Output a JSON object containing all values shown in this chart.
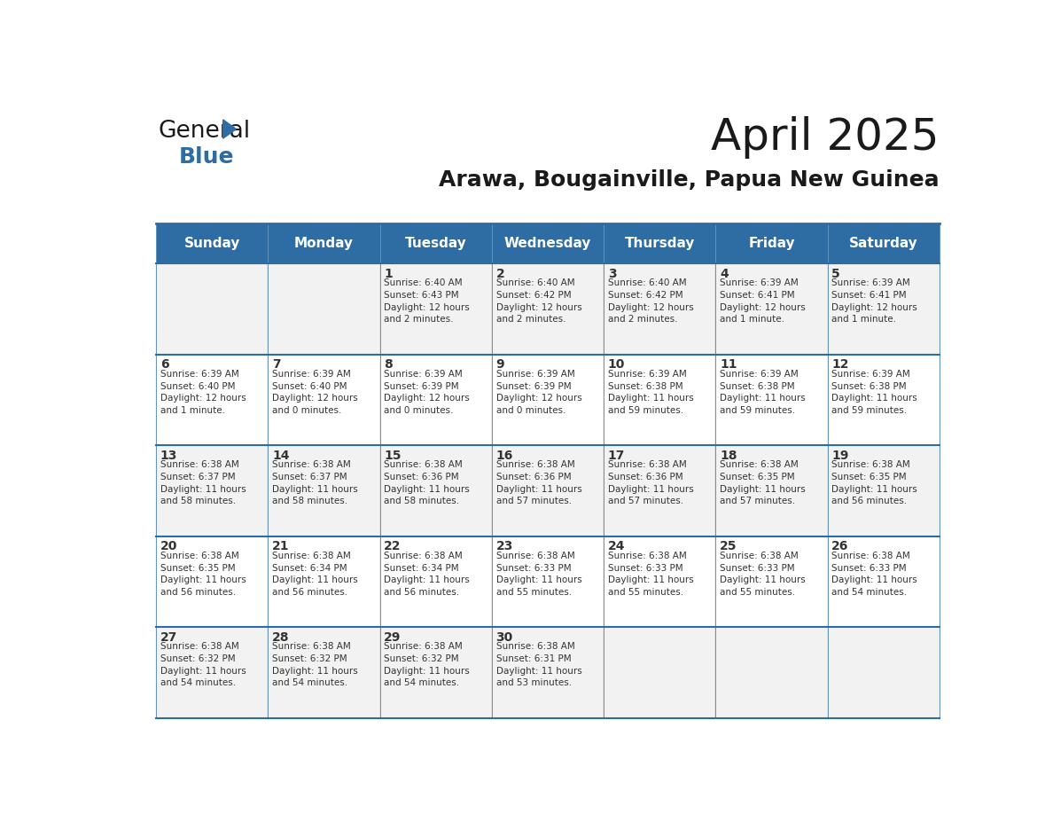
{
  "title": "April 2025",
  "subtitle": "Arawa, Bougainville, Papua New Guinea",
  "days_of_week": [
    "Sunday",
    "Monday",
    "Tuesday",
    "Wednesday",
    "Thursday",
    "Friday",
    "Saturday"
  ],
  "header_bg": "#2E6DA4",
  "header_text": "#FFFFFF",
  "cell_bg_odd": "#F2F2F2",
  "cell_bg_even": "#FFFFFF",
  "grid_line_color": "#2E6DA4",
  "text_color": "#333333",
  "calendar": [
    [
      {
        "day": "",
        "text": ""
      },
      {
        "day": "",
        "text": ""
      },
      {
        "day": "1",
        "text": "Sunrise: 6:40 AM\nSunset: 6:43 PM\nDaylight: 12 hours\nand 2 minutes."
      },
      {
        "day": "2",
        "text": "Sunrise: 6:40 AM\nSunset: 6:42 PM\nDaylight: 12 hours\nand 2 minutes."
      },
      {
        "day": "3",
        "text": "Sunrise: 6:40 AM\nSunset: 6:42 PM\nDaylight: 12 hours\nand 2 minutes."
      },
      {
        "day": "4",
        "text": "Sunrise: 6:39 AM\nSunset: 6:41 PM\nDaylight: 12 hours\nand 1 minute."
      },
      {
        "day": "5",
        "text": "Sunrise: 6:39 AM\nSunset: 6:41 PM\nDaylight: 12 hours\nand 1 minute."
      }
    ],
    [
      {
        "day": "6",
        "text": "Sunrise: 6:39 AM\nSunset: 6:40 PM\nDaylight: 12 hours\nand 1 minute."
      },
      {
        "day": "7",
        "text": "Sunrise: 6:39 AM\nSunset: 6:40 PM\nDaylight: 12 hours\nand 0 minutes."
      },
      {
        "day": "8",
        "text": "Sunrise: 6:39 AM\nSunset: 6:39 PM\nDaylight: 12 hours\nand 0 minutes."
      },
      {
        "day": "9",
        "text": "Sunrise: 6:39 AM\nSunset: 6:39 PM\nDaylight: 12 hours\nand 0 minutes."
      },
      {
        "day": "10",
        "text": "Sunrise: 6:39 AM\nSunset: 6:38 PM\nDaylight: 11 hours\nand 59 minutes."
      },
      {
        "day": "11",
        "text": "Sunrise: 6:39 AM\nSunset: 6:38 PM\nDaylight: 11 hours\nand 59 minutes."
      },
      {
        "day": "12",
        "text": "Sunrise: 6:39 AM\nSunset: 6:38 PM\nDaylight: 11 hours\nand 59 minutes."
      }
    ],
    [
      {
        "day": "13",
        "text": "Sunrise: 6:38 AM\nSunset: 6:37 PM\nDaylight: 11 hours\nand 58 minutes."
      },
      {
        "day": "14",
        "text": "Sunrise: 6:38 AM\nSunset: 6:37 PM\nDaylight: 11 hours\nand 58 minutes."
      },
      {
        "day": "15",
        "text": "Sunrise: 6:38 AM\nSunset: 6:36 PM\nDaylight: 11 hours\nand 58 minutes."
      },
      {
        "day": "16",
        "text": "Sunrise: 6:38 AM\nSunset: 6:36 PM\nDaylight: 11 hours\nand 57 minutes."
      },
      {
        "day": "17",
        "text": "Sunrise: 6:38 AM\nSunset: 6:36 PM\nDaylight: 11 hours\nand 57 minutes."
      },
      {
        "day": "18",
        "text": "Sunrise: 6:38 AM\nSunset: 6:35 PM\nDaylight: 11 hours\nand 57 minutes."
      },
      {
        "day": "19",
        "text": "Sunrise: 6:38 AM\nSunset: 6:35 PM\nDaylight: 11 hours\nand 56 minutes."
      }
    ],
    [
      {
        "day": "20",
        "text": "Sunrise: 6:38 AM\nSunset: 6:35 PM\nDaylight: 11 hours\nand 56 minutes."
      },
      {
        "day": "21",
        "text": "Sunrise: 6:38 AM\nSunset: 6:34 PM\nDaylight: 11 hours\nand 56 minutes."
      },
      {
        "day": "22",
        "text": "Sunrise: 6:38 AM\nSunset: 6:34 PM\nDaylight: 11 hours\nand 56 minutes."
      },
      {
        "day": "23",
        "text": "Sunrise: 6:38 AM\nSunset: 6:33 PM\nDaylight: 11 hours\nand 55 minutes."
      },
      {
        "day": "24",
        "text": "Sunrise: 6:38 AM\nSunset: 6:33 PM\nDaylight: 11 hours\nand 55 minutes."
      },
      {
        "day": "25",
        "text": "Sunrise: 6:38 AM\nSunset: 6:33 PM\nDaylight: 11 hours\nand 55 minutes."
      },
      {
        "day": "26",
        "text": "Sunrise: 6:38 AM\nSunset: 6:33 PM\nDaylight: 11 hours\nand 54 minutes."
      }
    ],
    [
      {
        "day": "27",
        "text": "Sunrise: 6:38 AM\nSunset: 6:32 PM\nDaylight: 11 hours\nand 54 minutes."
      },
      {
        "day": "28",
        "text": "Sunrise: 6:38 AM\nSunset: 6:32 PM\nDaylight: 11 hours\nand 54 minutes."
      },
      {
        "day": "29",
        "text": "Sunrise: 6:38 AM\nSunset: 6:32 PM\nDaylight: 11 hours\nand 54 minutes."
      },
      {
        "day": "30",
        "text": "Sunrise: 6:38 AM\nSunset: 6:31 PM\nDaylight: 11 hours\nand 53 minutes."
      },
      {
        "day": "",
        "text": ""
      },
      {
        "day": "",
        "text": ""
      },
      {
        "day": "",
        "text": ""
      }
    ]
  ]
}
